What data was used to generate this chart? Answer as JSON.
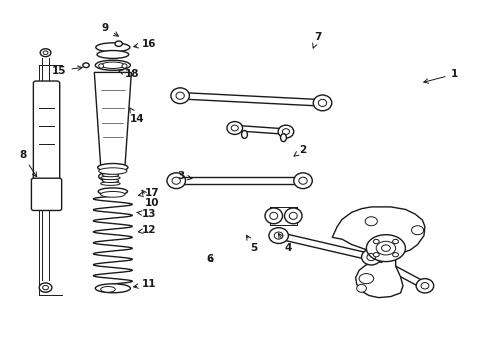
{
  "bg_color": "#ffffff",
  "line_color": "#1a1a1a",
  "fig_width": 4.89,
  "fig_height": 3.6,
  "dpi": 100,
  "label_positions": {
    "1": [
      0.93,
      0.205,
      0.86,
      0.23
    ],
    "2": [
      0.62,
      0.415,
      0.6,
      0.435
    ],
    "3": [
      0.37,
      0.49,
      0.4,
      0.498
    ],
    "4": [
      0.59,
      0.69,
      0.565,
      0.64
    ],
    "5": [
      0.52,
      0.69,
      0.5,
      0.645
    ],
    "6": [
      0.43,
      0.72,
      0.44,
      0.735
    ],
    "7": [
      0.65,
      0.1,
      0.64,
      0.135
    ],
    "8": [
      0.045,
      0.43,
      0.078,
      0.5
    ],
    "9": [
      0.215,
      0.075,
      0.248,
      0.105
    ],
    "10": [
      0.31,
      0.565,
      0.285,
      0.52
    ],
    "11": [
      0.305,
      0.79,
      0.265,
      0.8
    ],
    "12": [
      0.305,
      0.64,
      0.28,
      0.645
    ],
    "13": [
      0.305,
      0.595,
      0.278,
      0.59
    ],
    "14": [
      0.28,
      0.33,
      0.26,
      0.29
    ],
    "15": [
      0.12,
      0.195,
      0.175,
      0.185
    ],
    "16": [
      0.305,
      0.12,
      0.265,
      0.13
    ],
    "17": [
      0.31,
      0.535,
      0.275,
      0.545
    ],
    "18": [
      0.27,
      0.205,
      0.24,
      0.195
    ]
  }
}
